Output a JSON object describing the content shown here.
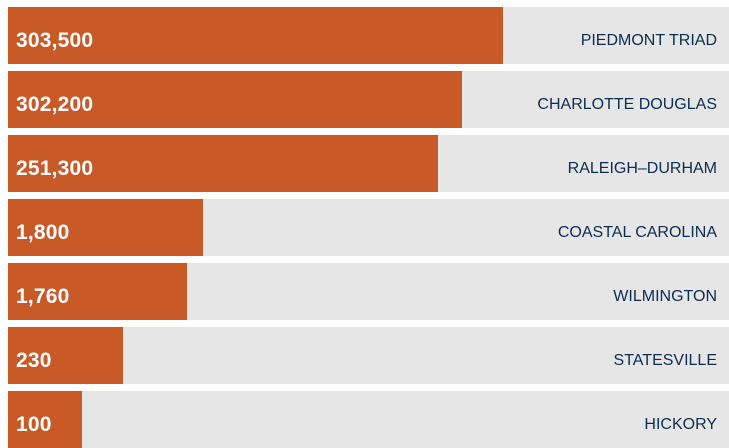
{
  "chart_data": {
    "type": "bar",
    "orientation": "horizontal",
    "categories": [
      "PIEDMONT TRIAD",
      "CHARLOTTE DOUGLAS",
      "RALEIGH–DURHAM",
      "COASTAL CAROLINA",
      "WILMINGTON",
      "STATESVILLE",
      "HICKORY"
    ],
    "values": [
      303500,
      302200,
      251300,
      1800,
      1760,
      230,
      100
    ],
    "value_labels": [
      "303,500",
      "302,200",
      "251,300",
      "1,800",
      "1,760",
      "230",
      "100"
    ],
    "bar_fill_fraction": [
      0.686,
      0.63,
      0.596,
      0.27,
      0.248,
      0.159,
      0.102
    ],
    "title": "",
    "xlabel": "",
    "ylabel": "",
    "grid": false,
    "legend": "none"
  },
  "colors": {
    "bar": "#c85a28",
    "track": "#e6e6e6",
    "value_text": "#ffffff",
    "label_text": "#0d2c4e",
    "background": "#ffffff"
  }
}
